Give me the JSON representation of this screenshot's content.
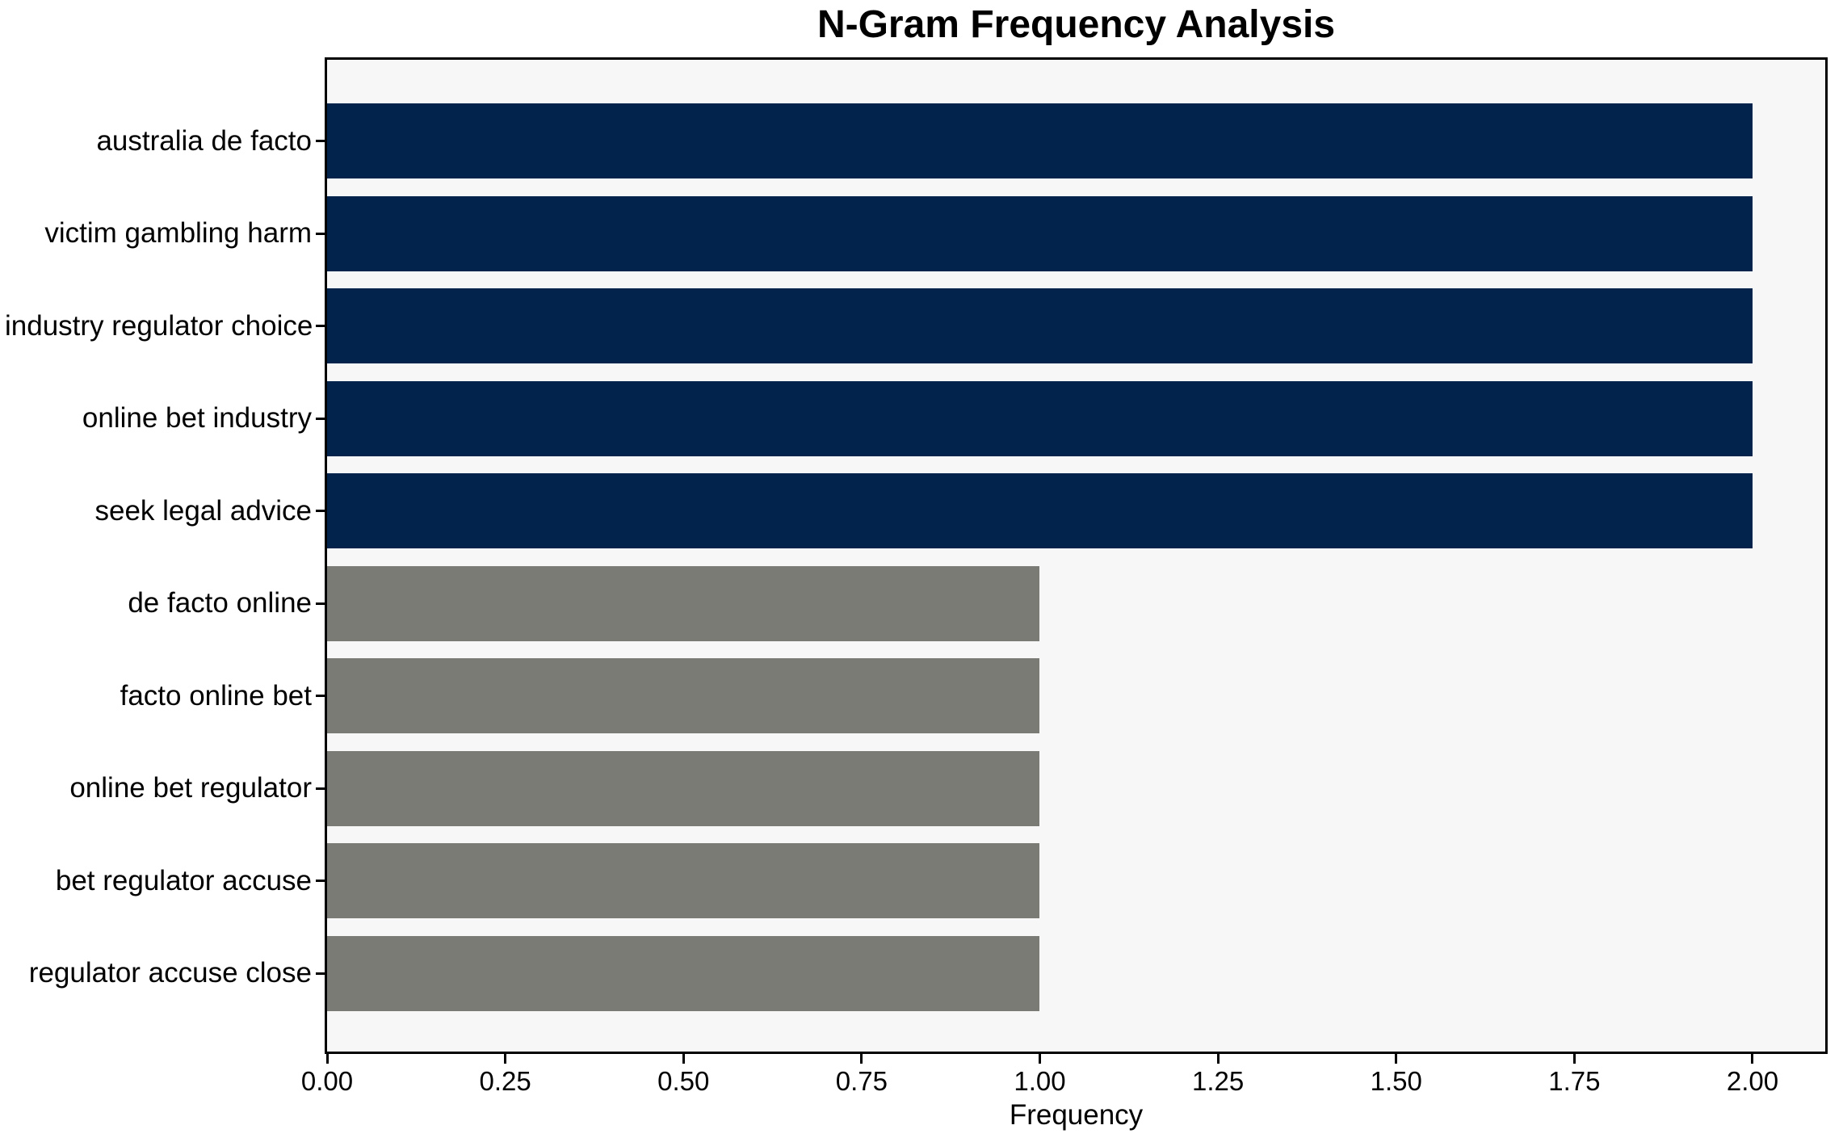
{
  "chart_data": {
    "type": "bar",
    "orientation": "horizontal",
    "title": "N-Gram Frequency Analysis",
    "xlabel": "Frequency",
    "ylabel": "",
    "categories": [
      "australia de facto",
      "victim gambling harm",
      "industry regulator choice",
      "online bet industry",
      "seek legal advice",
      "de facto online",
      "facto online bet",
      "online bet regulator",
      "bet regulator accuse",
      "regulator accuse close"
    ],
    "values": [
      2,
      2,
      2,
      2,
      2,
      1,
      1,
      1,
      1,
      1
    ],
    "bar_colors": [
      "#02234c",
      "#02234c",
      "#02234c",
      "#02234c",
      "#02234c",
      "#7b7b76",
      "#7b7b76",
      "#7b7b76",
      "#7b7b76",
      "#7b7b76"
    ],
    "xlim": [
      0,
      2.102
    ],
    "xticks": [
      0,
      0.25,
      0.5,
      0.75,
      1.0,
      1.25,
      1.5,
      1.75,
      2.0
    ],
    "xtick_labels": [
      "0.00",
      "0.25",
      "0.50",
      "0.75",
      "1.00",
      "1.25",
      "1.50",
      "1.75",
      "2.00"
    ],
    "grid": false,
    "legend": null,
    "colors": {
      "bar_high": "#02234c",
      "bar_low": "#7b7b76",
      "plot_background": "#f7f7f7",
      "figure_background": "#ffffff",
      "spine": "#000000",
      "text": "#000000"
    }
  }
}
